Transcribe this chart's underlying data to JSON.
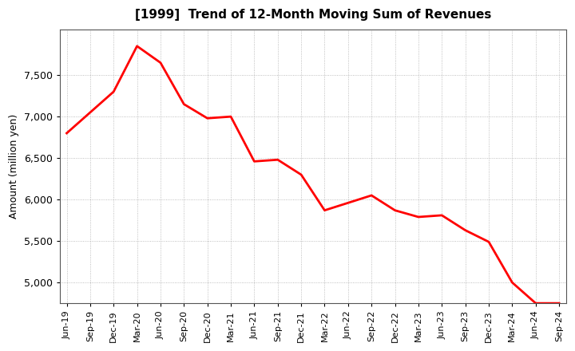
{
  "title": "[1999]  Trend of 12-Month Moving Sum of Revenues",
  "ylabel": "Amount (million yen)",
  "line_color": "#FF0000",
  "background_color": "#FFFFFF",
  "grid_color": "#999999",
  "ylim": [
    4750,
    8050
  ],
  "yticks": [
    5000,
    5500,
    6000,
    6500,
    7000,
    7500
  ],
  "x_labels": [
    "Jun-19",
    "Sep-19",
    "Dec-19",
    "Mar-20",
    "Jun-20",
    "Sep-20",
    "Dec-20",
    "Mar-21",
    "Jun-21",
    "Sep-21",
    "Dec-21",
    "Mar-22",
    "Jun-22",
    "Sep-22",
    "Dec-22",
    "Mar-23",
    "Jun-23",
    "Sep-23",
    "Dec-23",
    "Mar-24",
    "Jun-24",
    "Sep-24"
  ],
  "values": [
    6800,
    7050,
    7300,
    7850,
    7650,
    7150,
    6980,
    7000,
    6460,
    6480,
    6300,
    5870,
    5960,
    6050,
    5870,
    5790,
    5810,
    5630,
    5490,
    5000,
    4750,
    4750
  ]
}
